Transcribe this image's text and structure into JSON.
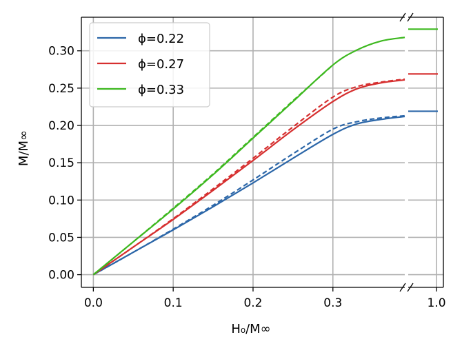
{
  "chart_data": {
    "type": "line",
    "xlabel": "H₀/M∞",
    "ylabel": "M/M∞",
    "xlim": [
      -0.015,
      0.39
    ],
    "ylim": [
      -0.017,
      0.345
    ],
    "x_ticks": [
      0.0,
      0.1,
      0.2,
      0.3
    ],
    "x_tick_labels": [
      "0.0",
      "0.1",
      "0.2",
      "0.3"
    ],
    "y_ticks": [
      0.0,
      0.05,
      0.1,
      0.15,
      0.2,
      0.25,
      0.3
    ],
    "y_tick_labels": [
      "0.00",
      "0.05",
      "0.10",
      "0.15",
      "0.20",
      "0.25",
      "0.30"
    ],
    "broken_axis": {
      "right_tick_label": "1.0",
      "right_tick_value": 1.0
    },
    "grid": true,
    "legend_position": "top-left",
    "series": [
      {
        "name": "ϕ=0.22",
        "color": "#2b66a8",
        "solid": {
          "x": [
            0,
            0.05,
            0.1,
            0.15,
            0.2,
            0.25,
            0.3,
            0.33,
            0.36,
            0.39
          ],
          "y": [
            0,
            0.03,
            0.06,
            0.091,
            0.123,
            0.156,
            0.188,
            0.202,
            0.208,
            0.212
          ]
        },
        "dashed": {
          "x": [
            0,
            0.05,
            0.1,
            0.15,
            0.2,
            0.25,
            0.3,
            0.33,
            0.36,
            0.39
          ],
          "y": [
            0,
            0.03,
            0.061,
            0.093,
            0.127,
            0.162,
            0.195,
            0.205,
            0.21,
            0.213
          ]
        },
        "asymptote": 0.219
      },
      {
        "name": "ϕ=0.27",
        "color": "#d62f2f",
        "solid": {
          "x": [
            0,
            0.05,
            0.1,
            0.15,
            0.2,
            0.25,
            0.3,
            0.33,
            0.36,
            0.39
          ],
          "y": [
            0,
            0.037,
            0.074,
            0.113,
            0.153,
            0.194,
            0.232,
            0.249,
            0.257,
            0.261
          ]
        },
        "dashed": {
          "x": [
            0,
            0.05,
            0.1,
            0.15,
            0.2,
            0.25,
            0.3,
            0.33,
            0.36,
            0.39
          ],
          "y": [
            0,
            0.037,
            0.075,
            0.115,
            0.156,
            0.198,
            0.238,
            0.252,
            0.258,
            0.262
          ]
        },
        "asymptote": 0.269
      },
      {
        "name": "ϕ=0.33",
        "color": "#3db81f",
        "solid": {
          "x": [
            0,
            0.05,
            0.1,
            0.15,
            0.2,
            0.25,
            0.3,
            0.33,
            0.36,
            0.39
          ],
          "y": [
            0,
            0.044,
            0.088,
            0.134,
            0.183,
            0.232,
            0.281,
            0.301,
            0.313,
            0.318
          ]
        },
        "dashed": {
          "x": [
            0,
            0.05,
            0.1,
            0.15,
            0.2,
            0.25,
            0.3
          ],
          "y": [
            0,
            0.044,
            0.089,
            0.135,
            0.184,
            0.233,
            0.281
          ]
        },
        "asymptote": 0.329
      }
    ]
  }
}
